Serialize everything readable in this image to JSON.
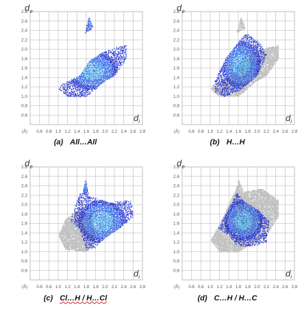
{
  "chart_data": [
    {
      "type": "scatter",
      "subtype": "hirshfeld-2d-fingerprint",
      "label": "(a)",
      "caption": "All…All",
      "ylabel": "d",
      "ylabel_sub": "e",
      "xlabel": "d",
      "xlabel_sub": "i",
      "unit": "(Å)",
      "xlim": [
        0.4,
        2.8
      ],
      "ylim": [
        0.4,
        2.8
      ],
      "x_ticks": [
        "0.6",
        "0.8",
        "1.0",
        "1.2",
        "1.4",
        "1.6",
        "1.8",
        "2.0",
        "2.2",
        "2.4",
        "2.6",
        "2.8"
      ],
      "y_ticks": [
        "0.6",
        "0.8",
        "1.0",
        "1.2",
        "1.4",
        "1.6",
        "1.8",
        "2.0",
        "2.2",
        "2.4",
        "2.6",
        "2.8"
      ],
      "grid": true,
      "highlight_region": [
        [
          1.05,
          1.25
        ],
        [
          1.45,
          1.45
        ],
        [
          1.65,
          1.75
        ],
        [
          1.95,
          1.95
        ],
        [
          2.25,
          2.05
        ],
        [
          2.45,
          2.1
        ],
        [
          2.45,
          1.8
        ],
        [
          2.2,
          1.45
        ],
        [
          1.95,
          1.3
        ],
        [
          1.6,
          1.0
        ],
        [
          1.2,
          1.0
        ],
        [
          1.0,
          1.15
        ]
      ],
      "highlight_spikes": [
        [
          [
            1.55,
            2.35
          ],
          [
            1.65,
            2.7
          ],
          [
            1.75,
            2.45
          ]
        ]
      ],
      "background_region": null,
      "background_spikes": []
    },
    {
      "type": "scatter",
      "subtype": "hirshfeld-2d-fingerprint",
      "label": "(b)",
      "caption": "H…H",
      "ylabel": "d",
      "ylabel_sub": "e",
      "xlabel": "d",
      "xlabel_sub": "i",
      "unit": "(Å)",
      "xlim": [
        0.4,
        2.8
      ],
      "ylim": [
        0.4,
        2.8
      ],
      "x_ticks": [
        "0.6",
        "0.8",
        "1.0",
        "1.2",
        "1.4",
        "1.6",
        "1.8",
        "2.0",
        "2.2",
        "2.4",
        "2.6",
        "2.8"
      ],
      "y_ticks": [
        "0.6",
        "0.8",
        "1.0",
        "1.2",
        "1.4",
        "1.6",
        "1.8",
        "2.0",
        "2.2",
        "2.4",
        "2.6",
        "2.8"
      ],
      "grid": true,
      "highlight_region": [
        [
          1.1,
          1.1
        ],
        [
          1.1,
          1.35
        ],
        [
          1.35,
          1.85
        ],
        [
          1.75,
          2.35
        ],
        [
          2.05,
          2.15
        ],
        [
          2.2,
          1.9
        ],
        [
          2.0,
          1.45
        ],
        [
          1.65,
          1.15
        ],
        [
          1.3,
          1.0
        ]
      ],
      "highlight_spikes": [],
      "background_region": [
        [
          1.05,
          1.25
        ],
        [
          1.45,
          1.45
        ],
        [
          1.65,
          1.75
        ],
        [
          1.95,
          1.95
        ],
        [
          2.25,
          2.05
        ],
        [
          2.45,
          2.1
        ],
        [
          2.45,
          1.8
        ],
        [
          2.2,
          1.45
        ],
        [
          1.95,
          1.3
        ],
        [
          1.6,
          1.0
        ],
        [
          1.2,
          1.0
        ],
        [
          1.0,
          1.15
        ]
      ],
      "background_spikes": [
        [
          [
            1.55,
            2.35
          ],
          [
            1.65,
            2.7
          ],
          [
            1.75,
            2.45
          ]
        ]
      ]
    },
    {
      "type": "scatter",
      "subtype": "hirshfeld-2d-fingerprint",
      "label": "(c)",
      "caption": "Cl…H / H…Cl",
      "caption_squiggle": true,
      "ylabel": "d",
      "ylabel_sub": "e",
      "xlabel": "d",
      "xlabel_sub": "i",
      "unit": "(Å)",
      "xlim": [
        0.4,
        2.8
      ],
      "ylim": [
        0.4,
        2.8
      ],
      "x_ticks": [
        "0.6",
        "0.8",
        "1.0",
        "1.2",
        "1.4",
        "1.6",
        "1.8",
        "2.0",
        "2.2",
        "2.4",
        "2.6",
        "2.8"
      ],
      "y_ticks": [
        "0.6",
        "0.8",
        "1.0",
        "1.2",
        "1.4",
        "1.6",
        "1.8",
        "2.0",
        "2.2",
        "2.4",
        "2.6",
        "2.8"
      ],
      "grid": true,
      "highlight_region": [
        [
          1.25,
          1.65
        ],
        [
          1.45,
          2.25
        ],
        [
          1.6,
          2.2
        ],
        [
          2.1,
          2.05
        ],
        [
          2.55,
          2.1
        ],
        [
          2.6,
          1.75
        ],
        [
          2.3,
          1.5
        ],
        [
          2.0,
          1.3
        ],
        [
          1.8,
          1.1
        ],
        [
          1.6,
          1.05
        ],
        [
          1.45,
          1.5
        ]
      ],
      "highlight_spikes": [
        [
          [
            1.5,
            2.2
          ],
          [
            1.58,
            2.55
          ],
          [
            1.65,
            2.2
          ]
        ]
      ],
      "background_region": [
        [
          1.0,
          1.35
        ],
        [
          1.15,
          1.7
        ],
        [
          1.45,
          1.9
        ],
        [
          1.7,
          1.8
        ],
        [
          1.8,
          1.2
        ],
        [
          1.6,
          1.0
        ],
        [
          1.15,
          1.05
        ]
      ],
      "background_spikes": []
    },
    {
      "type": "scatter",
      "subtype": "hirshfeld-2d-fingerprint",
      "label": "(d)",
      "caption": "C…H / H…C",
      "ylabel": "d",
      "ylabel_sub": "e",
      "xlabel": "d",
      "xlabel_sub": "i",
      "unit": "(Å)",
      "xlim": [
        0.4,
        2.8
      ],
      "ylim": [
        0.4,
        2.8
      ],
      "x_ticks": [
        "0.6",
        "0.8",
        "1.0",
        "1.2",
        "1.4",
        "1.6",
        "1.8",
        "2.0",
        "2.2",
        "2.4",
        "2.6",
        "2.8"
      ],
      "y_ticks": [
        "0.6",
        "0.8",
        "1.0",
        "1.2",
        "1.4",
        "1.6",
        "1.8",
        "2.0",
        "2.2",
        "2.4",
        "2.6",
        "2.8"
      ],
      "grid": true,
      "highlight_region": [
        [
          1.15,
          1.5
        ],
        [
          1.35,
          1.85
        ],
        [
          1.55,
          2.25
        ],
        [
          1.75,
          2.05
        ],
        [
          2.0,
          1.9
        ],
        [
          2.25,
          1.65
        ],
        [
          2.2,
          1.2
        ],
        [
          1.8,
          1.1
        ],
        [
          1.55,
          1.15
        ],
        [
          1.4,
          1.35
        ]
      ],
      "highlight_spikes": [],
      "background_region": [
        [
          1.0,
          1.25
        ],
        [
          1.2,
          1.6
        ],
        [
          1.5,
          2.25
        ],
        [
          1.8,
          2.3
        ],
        [
          2.1,
          2.35
        ],
        [
          2.45,
          2.1
        ],
        [
          2.45,
          1.75
        ],
        [
          2.2,
          1.35
        ],
        [
          1.6,
          1.0
        ],
        [
          1.2,
          1.0
        ]
      ],
      "background_spikes": [
        [
          [
            1.5,
            2.2
          ],
          [
            1.6,
            2.55
          ],
          [
            1.7,
            2.3
          ]
        ]
      ]
    }
  ]
}
